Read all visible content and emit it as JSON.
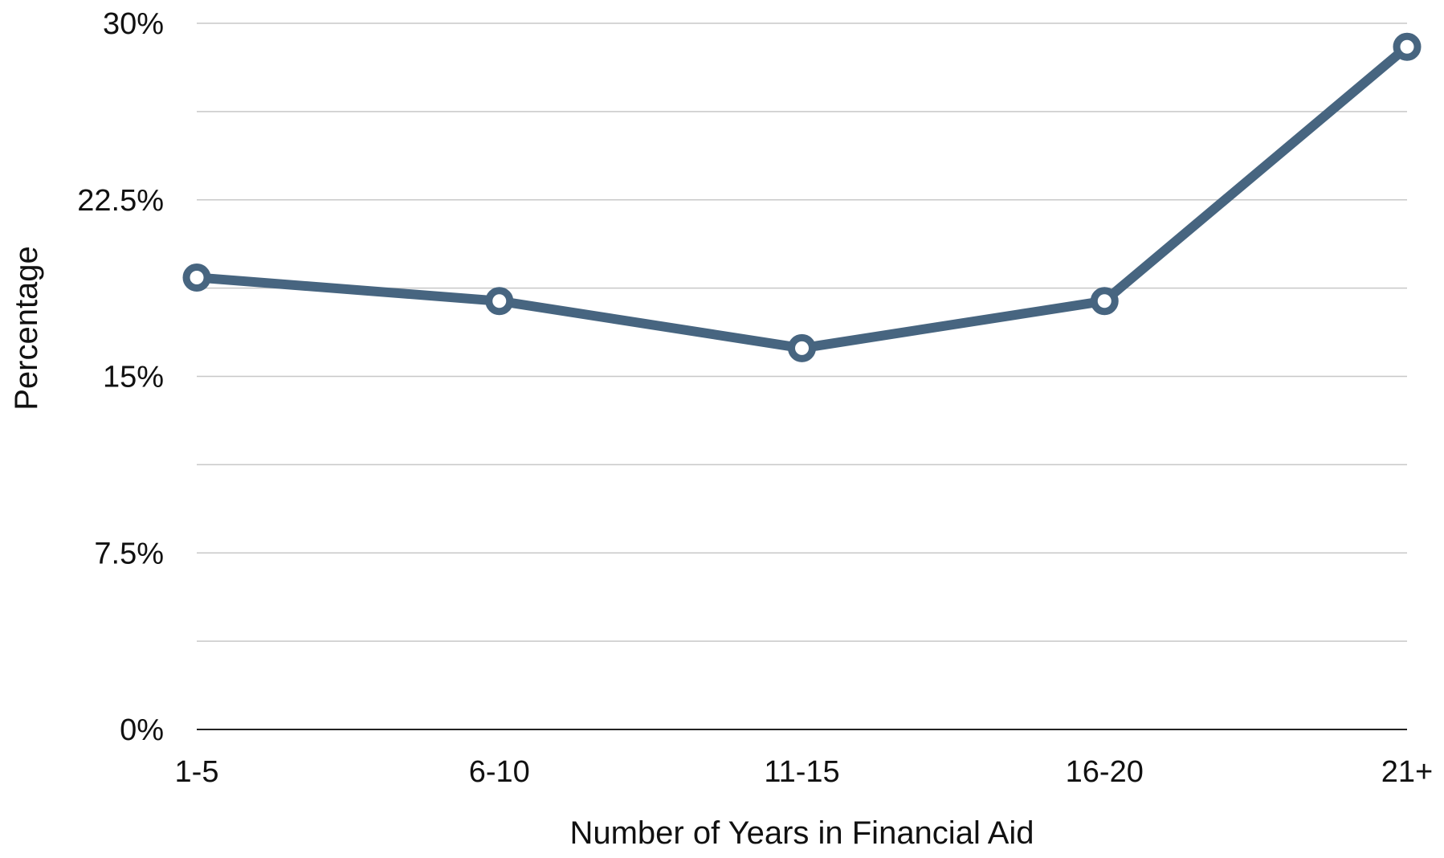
{
  "chart_data": {
    "type": "line",
    "categories": [
      "1-5",
      "6-10",
      "11-15",
      "16-20",
      "21+"
    ],
    "series": [
      {
        "values": [
          19.2,
          18.2,
          16.2,
          18.2,
          29.0
        ]
      }
    ],
    "xlabel": "Number of  Years in Financial Aid",
    "ylabel": "Percentage",
    "ylim": [
      0,
      30
    ],
    "yticks": [
      0,
      7.5,
      15,
      22.5,
      30
    ],
    "ytick_labels": [
      "0%",
      "7.5%",
      "15%",
      "22.5%",
      "30%"
    ],
    "minor_gridlines": [
      3.75,
      11.25,
      18.75,
      26.25
    ],
    "grid": true,
    "legend": "none",
    "colors": {
      "line": "#476580",
      "grid": "#c8c8c8",
      "axis": "#222222",
      "marker_fill": "#ffffff"
    }
  }
}
